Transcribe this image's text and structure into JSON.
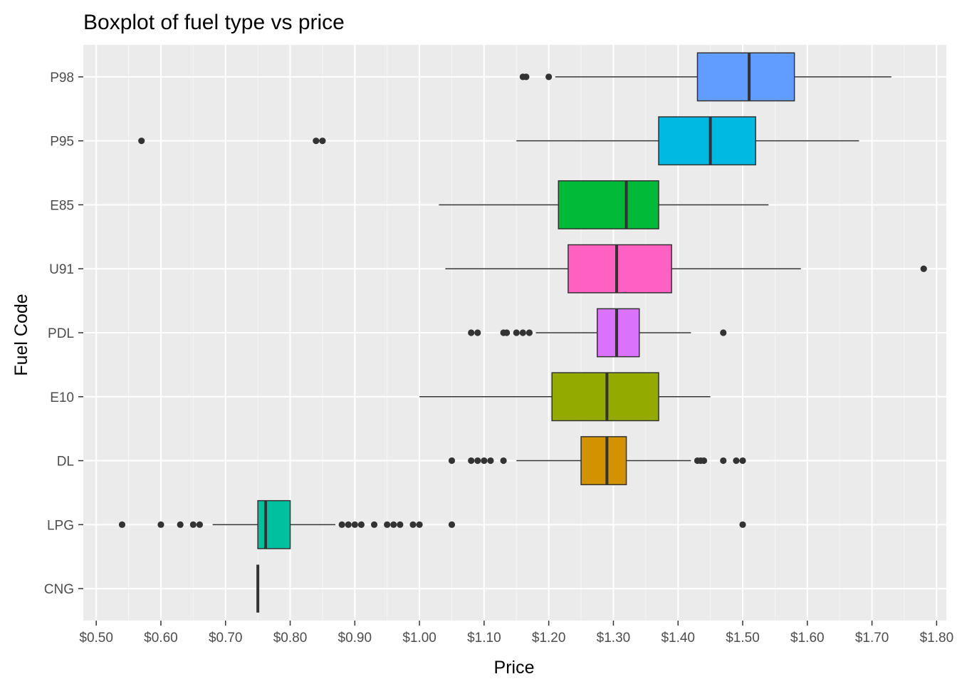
{
  "chart_data": {
    "type": "boxplot",
    "orientation": "horizontal",
    "title": "Boxplot of fuel type vs price",
    "xlabel": "Price",
    "ylabel": "Fuel Code",
    "xlim": [
      0.48,
      1.815
    ],
    "x_ticks": [
      0.5,
      0.6,
      0.7,
      0.8,
      0.9,
      1.0,
      1.1,
      1.2,
      1.3,
      1.4,
      1.5,
      1.6,
      1.7,
      1.8
    ],
    "x_tick_labels": [
      "$0.50",
      "$0.60",
      "$0.70",
      "$0.80",
      "$0.90",
      "$1.00",
      "$1.10",
      "$1.20",
      "$1.30",
      "$1.40",
      "$1.50",
      "$1.60",
      "$1.70",
      "$1.80"
    ],
    "grid": true,
    "legend": "none",
    "categories": [
      "P98",
      "P95",
      "E85",
      "U91",
      "PDL",
      "E10",
      "DL",
      "LPG",
      "CNG"
    ],
    "boxes": [
      {
        "name": "P98",
        "color": "#619CFF",
        "whisker_low": 1.21,
        "q1": 1.43,
        "median": 1.51,
        "q3": 1.58,
        "whisker_high": 1.73,
        "outliers": [
          1.16,
          1.165,
          1.2
        ]
      },
      {
        "name": "P95",
        "color": "#00B9E3",
        "whisker_low": 1.15,
        "q1": 1.37,
        "median": 1.45,
        "q3": 1.52,
        "whisker_high": 1.68,
        "outliers": [
          0.57,
          0.84,
          0.85
        ]
      },
      {
        "name": "E85",
        "color": "#00BA38",
        "whisker_low": 1.03,
        "q1": 1.215,
        "median": 1.32,
        "q3": 1.37,
        "whisker_high": 1.54,
        "outliers": []
      },
      {
        "name": "U91",
        "color": "#FF61C3",
        "whisker_low": 1.04,
        "q1": 1.23,
        "median": 1.305,
        "q3": 1.39,
        "whisker_high": 1.59,
        "outliers": [
          1.78
        ]
      },
      {
        "name": "PDL",
        "color": "#DB72FB",
        "whisker_low": 1.18,
        "q1": 1.275,
        "median": 1.305,
        "q3": 1.34,
        "whisker_high": 1.42,
        "outliers": [
          1.08,
          1.09,
          1.13,
          1.135,
          1.15,
          1.16,
          1.17,
          1.47
        ]
      },
      {
        "name": "E10",
        "color": "#93AA00",
        "whisker_low": 1.0,
        "q1": 1.205,
        "median": 1.29,
        "q3": 1.37,
        "whisker_high": 1.45,
        "outliers": []
      },
      {
        "name": "DL",
        "color": "#D39200",
        "whisker_low": 1.15,
        "q1": 1.25,
        "median": 1.29,
        "q3": 1.32,
        "whisker_high": 1.42,
        "outliers": [
          1.05,
          1.08,
          1.09,
          1.1,
          1.11,
          1.13,
          1.43,
          1.435,
          1.44,
          1.47,
          1.49,
          1.5
        ]
      },
      {
        "name": "LPG",
        "color": "#00C19F",
        "whisker_low": 0.68,
        "q1": 0.75,
        "median": 0.762,
        "q3": 0.8,
        "whisker_high": 0.87,
        "outliers": [
          0.54,
          0.6,
          0.63,
          0.65,
          0.66,
          0.88,
          0.89,
          0.9,
          0.91,
          0.93,
          0.95,
          0.96,
          0.97,
          0.99,
          1.0,
          1.05,
          1.5
        ]
      },
      {
        "name": "CNG",
        "color": "#F8766D",
        "whisker_low": 0.75,
        "q1": 0.75,
        "median": 0.75,
        "q3": 0.75,
        "whisker_high": 0.75,
        "outliers": []
      }
    ]
  },
  "colors": {
    "panel_background": "#EBEBEB",
    "grid_major": "#FFFFFF",
    "outline": "#333333",
    "tick_text": "#4D4D4D"
  }
}
